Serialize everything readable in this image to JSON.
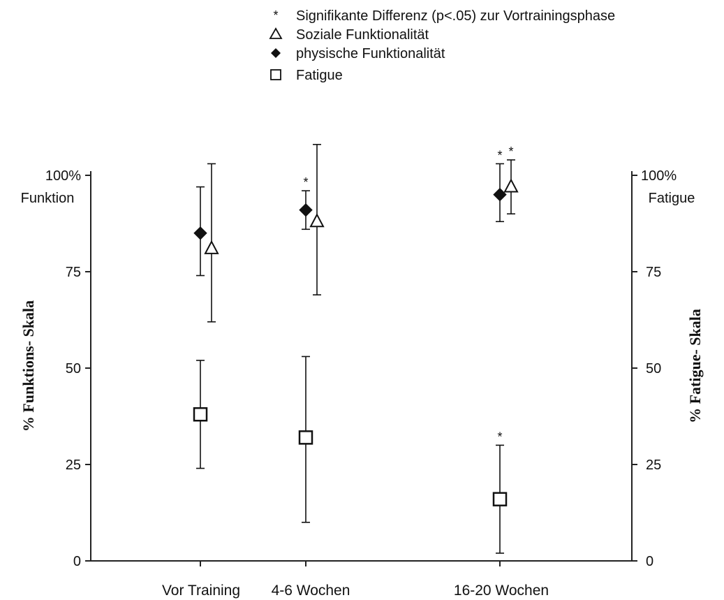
{
  "chart_data": {
    "type": "scatter",
    "categories": [
      "Vor Training",
      "4-6 Wochen",
      "16-20 Wochen"
    ],
    "left_axis": {
      "label": "% Funktions- Skala",
      "unit_label": "Funktion",
      "ticks": [
        "0",
        "25",
        "50",
        "75",
        "100%"
      ],
      "ylim": [
        0,
        100
      ]
    },
    "right_axis": {
      "label": "% Fatigue- Skala",
      "unit_label": "Fatigue",
      "ticks": [
        "0",
        "25",
        "50",
        "75",
        "100%"
      ],
      "ylim": [
        0,
        100
      ]
    },
    "legend": {
      "placement": "top-right",
      "significance": "Signifikante Differenz (p<.05) zur Vortrainingsphase",
      "significance_symbol": "*"
    },
    "series": [
      {
        "name": "Soziale Funktionalität",
        "marker": "open-triangle",
        "axis": "left",
        "values": [
          81,
          88,
          97
        ],
        "err_low": [
          62,
          69,
          90
        ],
        "err_high": [
          103,
          108,
          104
        ],
        "significant": [
          false,
          false,
          true
        ]
      },
      {
        "name": "physische Funktionalität",
        "marker": "filled-diamond",
        "axis": "left",
        "values": [
          85,
          91,
          95
        ],
        "err_low": [
          74,
          86,
          88
        ],
        "err_high": [
          97,
          96,
          103
        ],
        "significant": [
          false,
          true,
          true
        ]
      },
      {
        "name": "Fatigue",
        "marker": "open-square",
        "axis": "right",
        "values": [
          38,
          32,
          16
        ],
        "err_low": [
          24,
          10,
          2
        ],
        "err_high": [
          52,
          53,
          30
        ],
        "significant": [
          false,
          false,
          true
        ]
      }
    ]
  }
}
